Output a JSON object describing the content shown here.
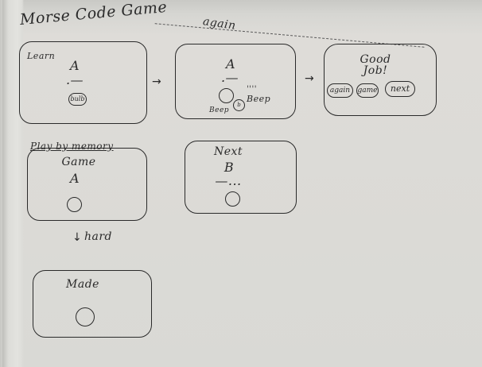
{
  "title": "Morse Code Game",
  "top_arc_label": "again",
  "learn_card": {
    "label": "Learn",
    "letter": "A",
    "morse": ".—",
    "button_label": "bulb"
  },
  "learn_card_2": {
    "letter": "A",
    "morse": ".—",
    "beep_label": "Beep",
    "beep_left": "Beep",
    "marks": "''''"
  },
  "good_job_card": {
    "text_line1": "Good",
    "text_line2": "Job!",
    "buttons": [
      "again",
      "game",
      "next"
    ]
  },
  "play_by_memory": {
    "label": "Play by memory",
    "game_label": "Game",
    "letter": "A"
  },
  "next_card": {
    "label": "Next",
    "letter": "B",
    "morse": "—..."
  },
  "hard_label": "hard",
  "made_card": {
    "label": "Made"
  }
}
